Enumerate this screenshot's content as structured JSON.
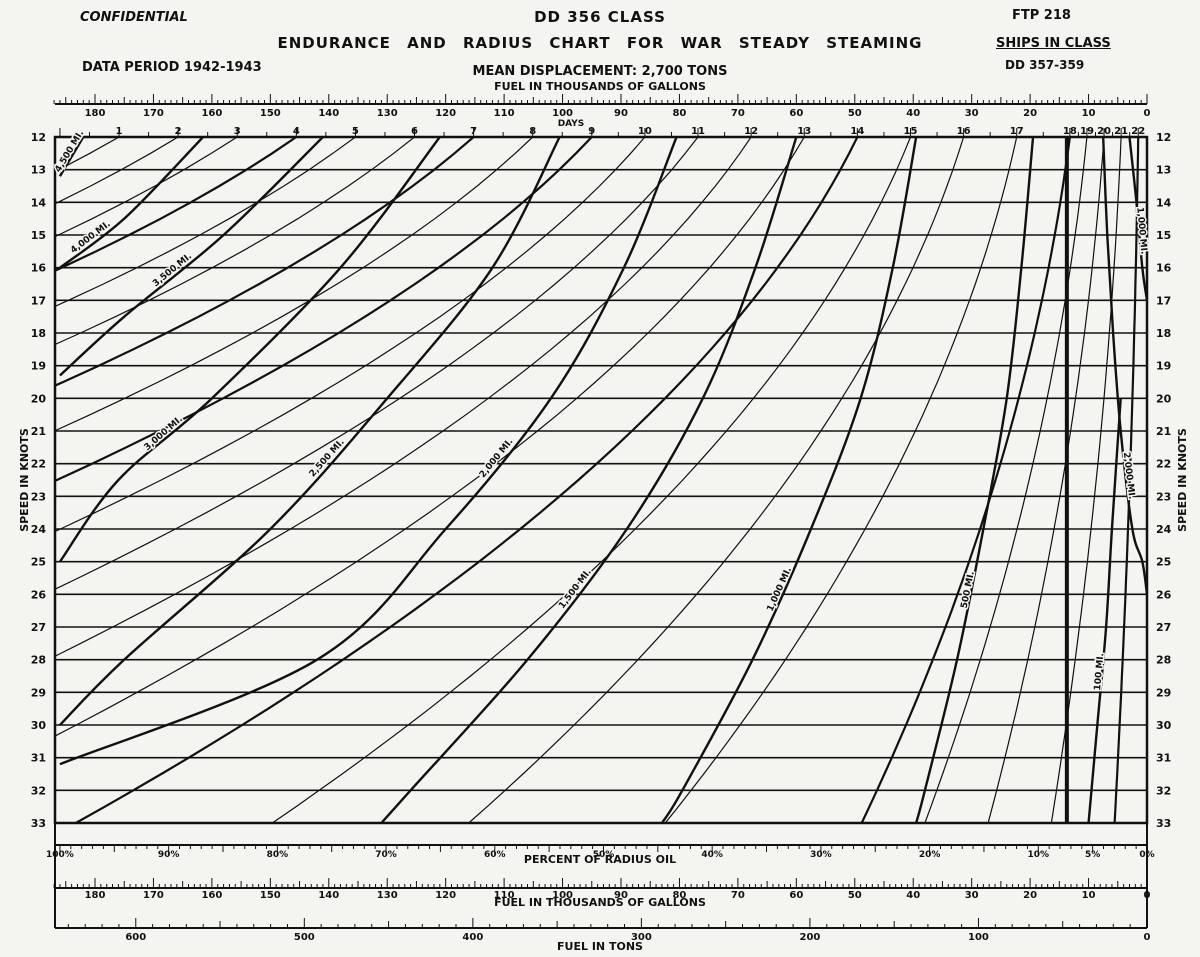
{
  "header": {
    "confidential": "CONFIDENTIAL",
    "class_title": "DD 356 CLASS",
    "chart_title": "ENDURANCE AND RADIUS CHART FOR WAR STEADY STEAMING",
    "ftp": "FTP 218",
    "ships_in_class_label": "SHIPS IN CLASS",
    "ships_in_class_value": "DD 357-359",
    "data_period": "DATA PERIOD 1942-1943",
    "mean_displacement": "MEAN DISPLACEMENT: 2,700 TONS"
  },
  "chart_data": {
    "type": "line",
    "title": "ENDURANCE AND RADIUS CHART FOR WAR STEADY STEAMING",
    "ylabel": "SPEED IN KNOTS",
    "ylim": [
      12,
      33
    ],
    "y_ticks": [
      12,
      13,
      14,
      15,
      16,
      17,
      18,
      19,
      20,
      21,
      22,
      23,
      24,
      25,
      26,
      27,
      28,
      29,
      30,
      31,
      32,
      33
    ],
    "top_axis": {
      "label": "FUEL IN THOUSANDS OF GALLONS",
      "ticks": [
        "180",
        "170",
        "160",
        "150",
        "140",
        "130",
        "120",
        "110",
        "100",
        "90",
        "80",
        "70",
        "60",
        "50",
        "40",
        "30",
        "20",
        "10",
        "0"
      ]
    },
    "days_axis": {
      "label": "DAYS",
      "ticks": [
        "1",
        "2",
        "3",
        "4",
        "5",
        "6",
        "7",
        "8",
        "9",
        "10",
        "11",
        "12",
        "13",
        "14",
        "15",
        "16",
        "17",
        "18",
        "19",
        "20",
        "21",
        "22"
      ]
    },
    "percent_axis": {
      "label": "PERCENT OF RADIUS OIL",
      "ticks": [
        "100%",
        "90%",
        "80%",
        "70%",
        "60%",
        "50%",
        "40%",
        "30%",
        "20%",
        "10%",
        "5%",
        "0%"
      ]
    },
    "bottom_gallons_axis": {
      "label": "FUEL IN THOUSANDS OF GALLONS",
      "ticks": [
        "180",
        "170",
        "160",
        "150",
        "140",
        "130",
        "120",
        "110",
        "100",
        "90",
        "80",
        "70",
        "60",
        "50",
        "40",
        "30",
        "20",
        "10",
        "0"
      ]
    },
    "tons_axis": {
      "label": "FUEL IN TONS",
      "ticks": [
        "600",
        "500",
        "400",
        "300",
        "200",
        "100",
        "0"
      ]
    },
    "fuel_at_full_radius_thousand_gallons": 186,
    "radius_series": [
      {
        "name": "4,500 MI.",
        "points": [
          [
            12,
            182
          ],
          [
            13.2,
            186
          ]
        ]
      },
      {
        "name": "4,000 MI.",
        "points": [
          [
            12,
            161.5
          ],
          [
            14.5,
            175
          ],
          [
            16,
            186
          ]
        ]
      },
      {
        "name": "3,500 MI.",
        "points": [
          [
            12,
            141
          ],
          [
            15,
            158
          ],
          [
            17.5,
            175
          ],
          [
            19.3,
            186
          ]
        ]
      },
      {
        "name": "3,000 MI.",
        "points": [
          [
            12,
            121
          ],
          [
            16,
            138
          ],
          [
            20,
            160
          ],
          [
            22.5,
            176
          ],
          [
            25,
            186
          ]
        ]
      },
      {
        "name": "2,500 MI.",
        "points": [
          [
            12,
            100.5
          ],
          [
            16,
            112
          ],
          [
            20,
            130
          ],
          [
            24,
            150
          ],
          [
            28,
            175
          ],
          [
            30,
            186
          ]
        ]
      },
      {
        "name": "2,000 MI.",
        "points": [
          [
            12,
            80.5
          ],
          [
            16,
            89.5
          ],
          [
            20,
            102
          ],
          [
            24,
            120
          ],
          [
            28,
            142
          ],
          [
            31.2,
            186
          ]
        ]
      },
      {
        "name": "1,500 MI.",
        "points": [
          [
            12,
            60
          ],
          [
            16,
            67
          ],
          [
            20,
            76
          ],
          [
            24,
            89
          ],
          [
            28,
            106
          ],
          [
            32,
            126
          ],
          [
            33,
            131
          ]
        ]
      },
      {
        "name": "1,000 MI.",
        "points": [
          [
            12,
            39.5
          ],
          [
            16,
            43.5
          ],
          [
            20,
            49
          ],
          [
            24,
            57.5
          ],
          [
            28,
            67.5
          ],
          [
            32,
            79.5
          ],
          [
            33,
            83
          ]
        ]
      },
      {
        "name": "500 MI.",
        "points": [
          [
            12,
            19.5
          ],
          [
            16,
            21.5
          ],
          [
            20,
            24
          ],
          [
            24,
            28
          ],
          [
            28,
            32.5
          ],
          [
            32,
            38
          ],
          [
            33,
            39.5
          ]
        ]
      },
      {
        "name": "100 MI.",
        "points": [
          [
            20,
            4.5
          ],
          [
            24,
            6
          ],
          [
            27,
            7
          ],
          [
            30,
            8.5
          ],
          [
            33,
            10
          ]
        ]
      },
      {
        "name": "1,000 MI.",
        "points": [
          [
            12,
            3
          ],
          [
            14,
            1.8
          ],
          [
            16,
            0.8
          ],
          [
            17,
            0
          ]
        ]
      },
      {
        "name": "2,000 MI.",
        "points": [
          [
            12,
            7.5
          ],
          [
            15,
            6.8
          ],
          [
            18,
            5.8
          ],
          [
            21,
            4.5
          ],
          [
            24,
            2.5
          ],
          [
            25,
            0.8
          ],
          [
            26,
            0
          ]
        ]
      }
    ],
    "days_scale": {
      "0": 186,
      "9": 95,
      "18": 13.2,
      "22": 1.5
    },
    "grid": true
  }
}
